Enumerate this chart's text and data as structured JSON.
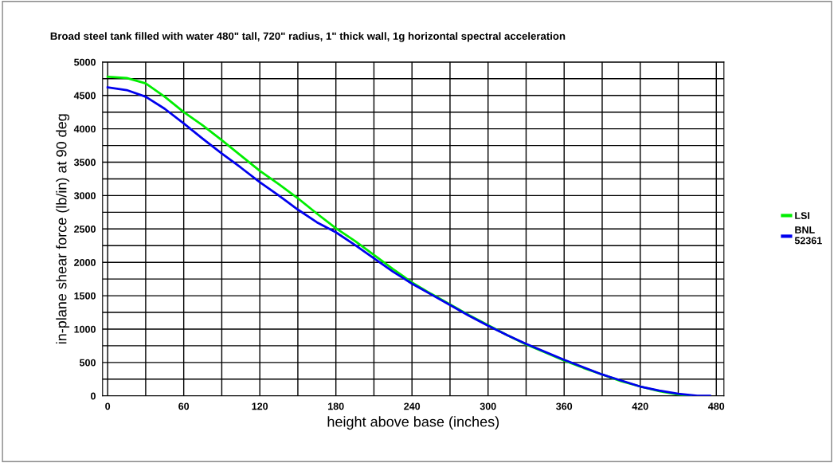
{
  "chart_data": {
    "type": "line",
    "title": "Broad steel tank filled with water 480\" tall, 720\" radius, 1\" thick wall, 1g horizontal spectral acceleration",
    "xlabel": "height above base (inches)",
    "ylabel": "in-plane shear force (lb/in) at 90 deg",
    "xlim": [
      -4,
      486
    ],
    "xticks": [
      0,
      60,
      120,
      180,
      240,
      300,
      360,
      420,
      480
    ],
    "ylim": [
      0,
      5000
    ],
    "yticks": [
      0,
      500,
      1000,
      1500,
      2000,
      2500,
      3000,
      3500,
      4000,
      4500,
      5000
    ],
    "grid": true,
    "legend": "right",
    "series": [
      {
        "name": "LSI",
        "color": "#00ee00",
        "x": [
          0,
          15,
          30,
          45,
          60,
          75,
          90,
          105,
          120,
          135,
          150,
          165,
          180,
          195,
          210,
          225,
          240,
          255,
          270,
          285,
          300,
          315,
          330,
          345,
          360,
          375,
          390,
          405,
          420,
          435,
          450,
          460
        ],
        "values": [
          4780,
          4760,
          4680,
          4480,
          4250,
          4050,
          3830,
          3600,
          3370,
          3170,
          2960,
          2730,
          2510,
          2320,
          2110,
          1900,
          1700,
          1530,
          1370,
          1210,
          1060,
          910,
          770,
          650,
          530,
          420,
          320,
          220,
          140,
          70,
          20,
          0
        ]
      },
      {
        "name": "BNL\n52361",
        "color": "#0000ee",
        "x": [
          0,
          15,
          30,
          45,
          60,
          75,
          90,
          105,
          120,
          135,
          150,
          165,
          180,
          195,
          210,
          225,
          240,
          255,
          270,
          285,
          300,
          315,
          330,
          345,
          360,
          375,
          390,
          405,
          420,
          435,
          450,
          465,
          475
        ],
        "values": [
          4620,
          4580,
          4480,
          4300,
          4080,
          3850,
          3630,
          3420,
          3200,
          3000,
          2790,
          2600,
          2450,
          2260,
          2060,
          1860,
          1680,
          1520,
          1360,
          1200,
          1050,
          910,
          780,
          660,
          540,
          430,
          320,
          230,
          140,
          80,
          30,
          0,
          0
        ]
      }
    ]
  }
}
